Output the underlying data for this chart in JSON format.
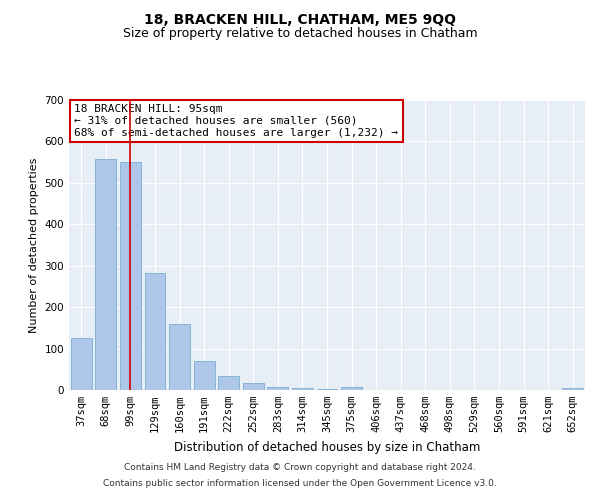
{
  "title": "18, BRACKEN HILL, CHATHAM, ME5 9QQ",
  "subtitle": "Size of property relative to detached houses in Chatham",
  "xlabel": "Distribution of detached houses by size in Chatham",
  "ylabel": "Number of detached properties",
  "categories": [
    "37sqm",
    "68sqm",
    "99sqm",
    "129sqm",
    "160sqm",
    "191sqm",
    "222sqm",
    "252sqm",
    "283sqm",
    "314sqm",
    "345sqm",
    "375sqm",
    "406sqm",
    "437sqm",
    "468sqm",
    "498sqm",
    "529sqm",
    "560sqm",
    "591sqm",
    "621sqm",
    "652sqm"
  ],
  "values": [
    125,
    557,
    550,
    283,
    160,
    70,
    35,
    18,
    8,
    4,
    2,
    8,
    0,
    0,
    0,
    0,
    0,
    0,
    0,
    0,
    5
  ],
  "bar_color": "#aec6e8",
  "bar_edge_color": "#7bafd4",
  "vline_x": 2.0,
  "vline_color": "#cc0000",
  "annotation_text": "18 BRACKEN HILL: 95sqm\n← 31% of detached houses are smaller (560)\n68% of semi-detached houses are larger (1,232) →",
  "annotation_box_facecolor": "#ffffff",
  "annotation_box_edgecolor": "#cc0000",
  "ylim": [
    0,
    700
  ],
  "yticks": [
    0,
    100,
    200,
    300,
    400,
    500,
    600,
    700
  ],
  "plot_bg_color": "#e8eef5",
  "grid_color": "#ffffff",
  "footer_line1": "Contains HM Land Registry data © Crown copyright and database right 2024.",
  "footer_line2": "Contains public sector information licensed under the Open Government Licence v3.0.",
  "title_fontsize": 10,
  "subtitle_fontsize": 9,
  "xlabel_fontsize": 8.5,
  "ylabel_fontsize": 8,
  "tick_fontsize": 7.5,
  "annotation_fontsize": 8,
  "footer_fontsize": 6.5
}
